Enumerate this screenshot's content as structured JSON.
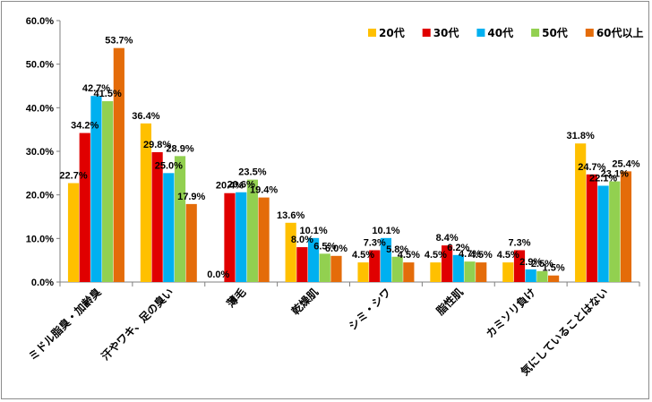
{
  "chart_data": {
    "type": "bar",
    "title": "",
    "xlabel": "",
    "ylabel": "",
    "ylim": [
      0,
      60
    ],
    "y_ticks": [
      "0.0%",
      "10.0%",
      "20.0%",
      "30.0%",
      "40.0%",
      "50.0%",
      "60.0%"
    ],
    "grid": false,
    "legend_position": "top-right",
    "categories": [
      "ミドル脂臭・加齢臭",
      "汗やワキ、足の臭い",
      "薄毛",
      "乾燥肌",
      "シミ・シワ",
      "脂性肌",
      "カミソリ負け",
      "気にしていることはない"
    ],
    "series": [
      {
        "name": "20代",
        "color": "#FFC000",
        "values": [
          22.7,
          36.4,
          0.0,
          13.6,
          4.5,
          4.5,
          4.5,
          31.8
        ],
        "labels": [
          "22.7%",
          "36.4%",
          "0.0%",
          "13.6%",
          "4.5%",
          "4.5%",
          "4.5%",
          "31.8%"
        ]
      },
      {
        "name": "30代",
        "color": "#E00000",
        "values": [
          34.2,
          29.8,
          20.4,
          8.0,
          7.3,
          8.4,
          7.3,
          24.7
        ],
        "labels": [
          "34.2%",
          "29.8%",
          "20.4%",
          "8.0%",
          "7.3%",
          "8.4%",
          "7.3%",
          "24.7%"
        ]
      },
      {
        "name": "40代",
        "color": "#00B0F0",
        "values": [
          42.7,
          25.0,
          20.6,
          10.1,
          10.1,
          6.2,
          2.9,
          22.1
        ],
        "labels": [
          "42.7%",
          "25.0%",
          "20.6%",
          "10.1%",
          "10.1%",
          "6.2%",
          "2.9%",
          "22.1%"
        ]
      },
      {
        "name": "50代",
        "color": "#92D050",
        "values": [
          41.5,
          28.9,
          23.5,
          6.5,
          5.8,
          4.7,
          2.5,
          23.1
        ],
        "labels": [
          "41.5%",
          "28.9%",
          "23.5%",
          "6.5%",
          "5.8%",
          "4.7%",
          "2.5%",
          "23.1%"
        ]
      },
      {
        "name": "60代以上",
        "color": "#E46C0A",
        "values": [
          53.7,
          17.9,
          19.4,
          6.0,
          4.5,
          4.5,
          1.5,
          25.4
        ],
        "labels": [
          "53.7%",
          "17.9%",
          "19.4%",
          "6.0%",
          "4.5%",
          "4.5%",
          "1.5%",
          "25.4%"
        ]
      }
    ]
  }
}
